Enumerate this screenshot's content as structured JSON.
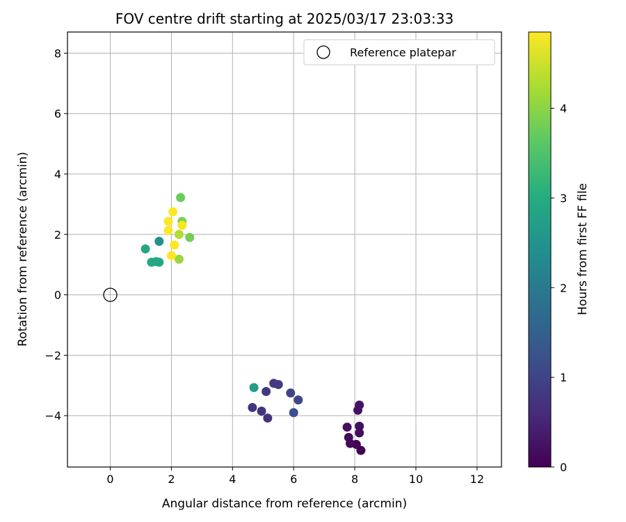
{
  "chart_data": {
    "type": "scatter",
    "title": "FOV centre drift starting at 2025/03/17 23:03:33",
    "xlabel": "Angular distance from reference (arcmin)",
    "ylabel": "Rotation from reference (arcmin)",
    "xlim": [
      -1.4,
      12.8
    ],
    "ylim": [
      -5.7,
      8.7
    ],
    "xticks": [
      0,
      2,
      4,
      6,
      8,
      10,
      12
    ],
    "yticks": [
      -4,
      -2,
      0,
      2,
      4,
      6,
      8
    ],
    "grid": true,
    "legend": {
      "placement": "top-right",
      "entries": [
        "Reference platepar"
      ]
    },
    "reference_point": {
      "x": 0,
      "y": 0,
      "label": "Reference platepar"
    },
    "colorbar": {
      "label": "Hours from first FF file",
      "min": 0,
      "max": 4.85,
      "ticks": [
        0,
        1,
        2,
        3,
        4
      ],
      "colormap": "viridis"
    },
    "series": [
      {
        "points": [
          {
            "x": 8.2,
            "y": -5.15,
            "c": 0.0
          },
          {
            "x": 8.05,
            "y": -4.95,
            "c": 0.05
          },
          {
            "x": 7.85,
            "y": -4.92,
            "c": 0.1
          },
          {
            "x": 7.8,
            "y": -4.72,
            "c": 0.12
          },
          {
            "x": 8.15,
            "y": -4.57,
            "c": 0.15
          },
          {
            "x": 7.75,
            "y": -4.38,
            "c": 0.18
          },
          {
            "x": 8.15,
            "y": -4.35,
            "c": 0.2
          },
          {
            "x": 8.1,
            "y": -3.82,
            "c": 0.22
          },
          {
            "x": 8.15,
            "y": -3.65,
            "c": 0.25
          },
          {
            "x": 5.15,
            "y": -4.08,
            "c": 0.7
          },
          {
            "x": 4.95,
            "y": -3.85,
            "c": 0.72
          },
          {
            "x": 4.65,
            "y": -3.73,
            "c": 0.75
          },
          {
            "x": 5.1,
            "y": -3.2,
            "c": 0.8
          },
          {
            "x": 5.35,
            "y": -2.93,
            "c": 0.83
          },
          {
            "x": 5.5,
            "y": -2.97,
            "c": 0.85
          },
          {
            "x": 5.9,
            "y": -3.25,
            "c": 1.0
          },
          {
            "x": 6.15,
            "y": -3.48,
            "c": 1.05
          },
          {
            "x": 6.0,
            "y": -3.9,
            "c": 1.2
          },
          {
            "x": 4.7,
            "y": -3.07,
            "c": 2.7
          },
          {
            "x": 1.6,
            "y": 1.77,
            "c": 2.45
          },
          {
            "x": 1.15,
            "y": 1.52,
            "c": 2.9
          },
          {
            "x": 1.35,
            "y": 1.08,
            "c": 2.95
          },
          {
            "x": 1.5,
            "y": 1.1,
            "c": 2.85
          },
          {
            "x": 1.6,
            "y": 1.08,
            "c": 2.9
          },
          {
            "x": 2.3,
            "y": 3.22,
            "c": 3.75
          },
          {
            "x": 2.35,
            "y": 2.43,
            "c": 3.9
          },
          {
            "x": 2.6,
            "y": 1.9,
            "c": 3.85
          },
          {
            "x": 2.25,
            "y": 1.18,
            "c": 4.1
          },
          {
            "x": 2.25,
            "y": 2.0,
            "c": 4.3
          },
          {
            "x": 2.05,
            "y": 2.75,
            "c": 4.85
          },
          {
            "x": 1.9,
            "y": 2.43,
            "c": 4.85
          },
          {
            "x": 2.35,
            "y": 2.3,
            "c": 4.8
          },
          {
            "x": 1.9,
            "y": 2.13,
            "c": 4.85
          },
          {
            "x": 2.1,
            "y": 1.65,
            "c": 4.85
          },
          {
            "x": 2.0,
            "y": 1.3,
            "c": 4.85
          }
        ]
      }
    ]
  }
}
